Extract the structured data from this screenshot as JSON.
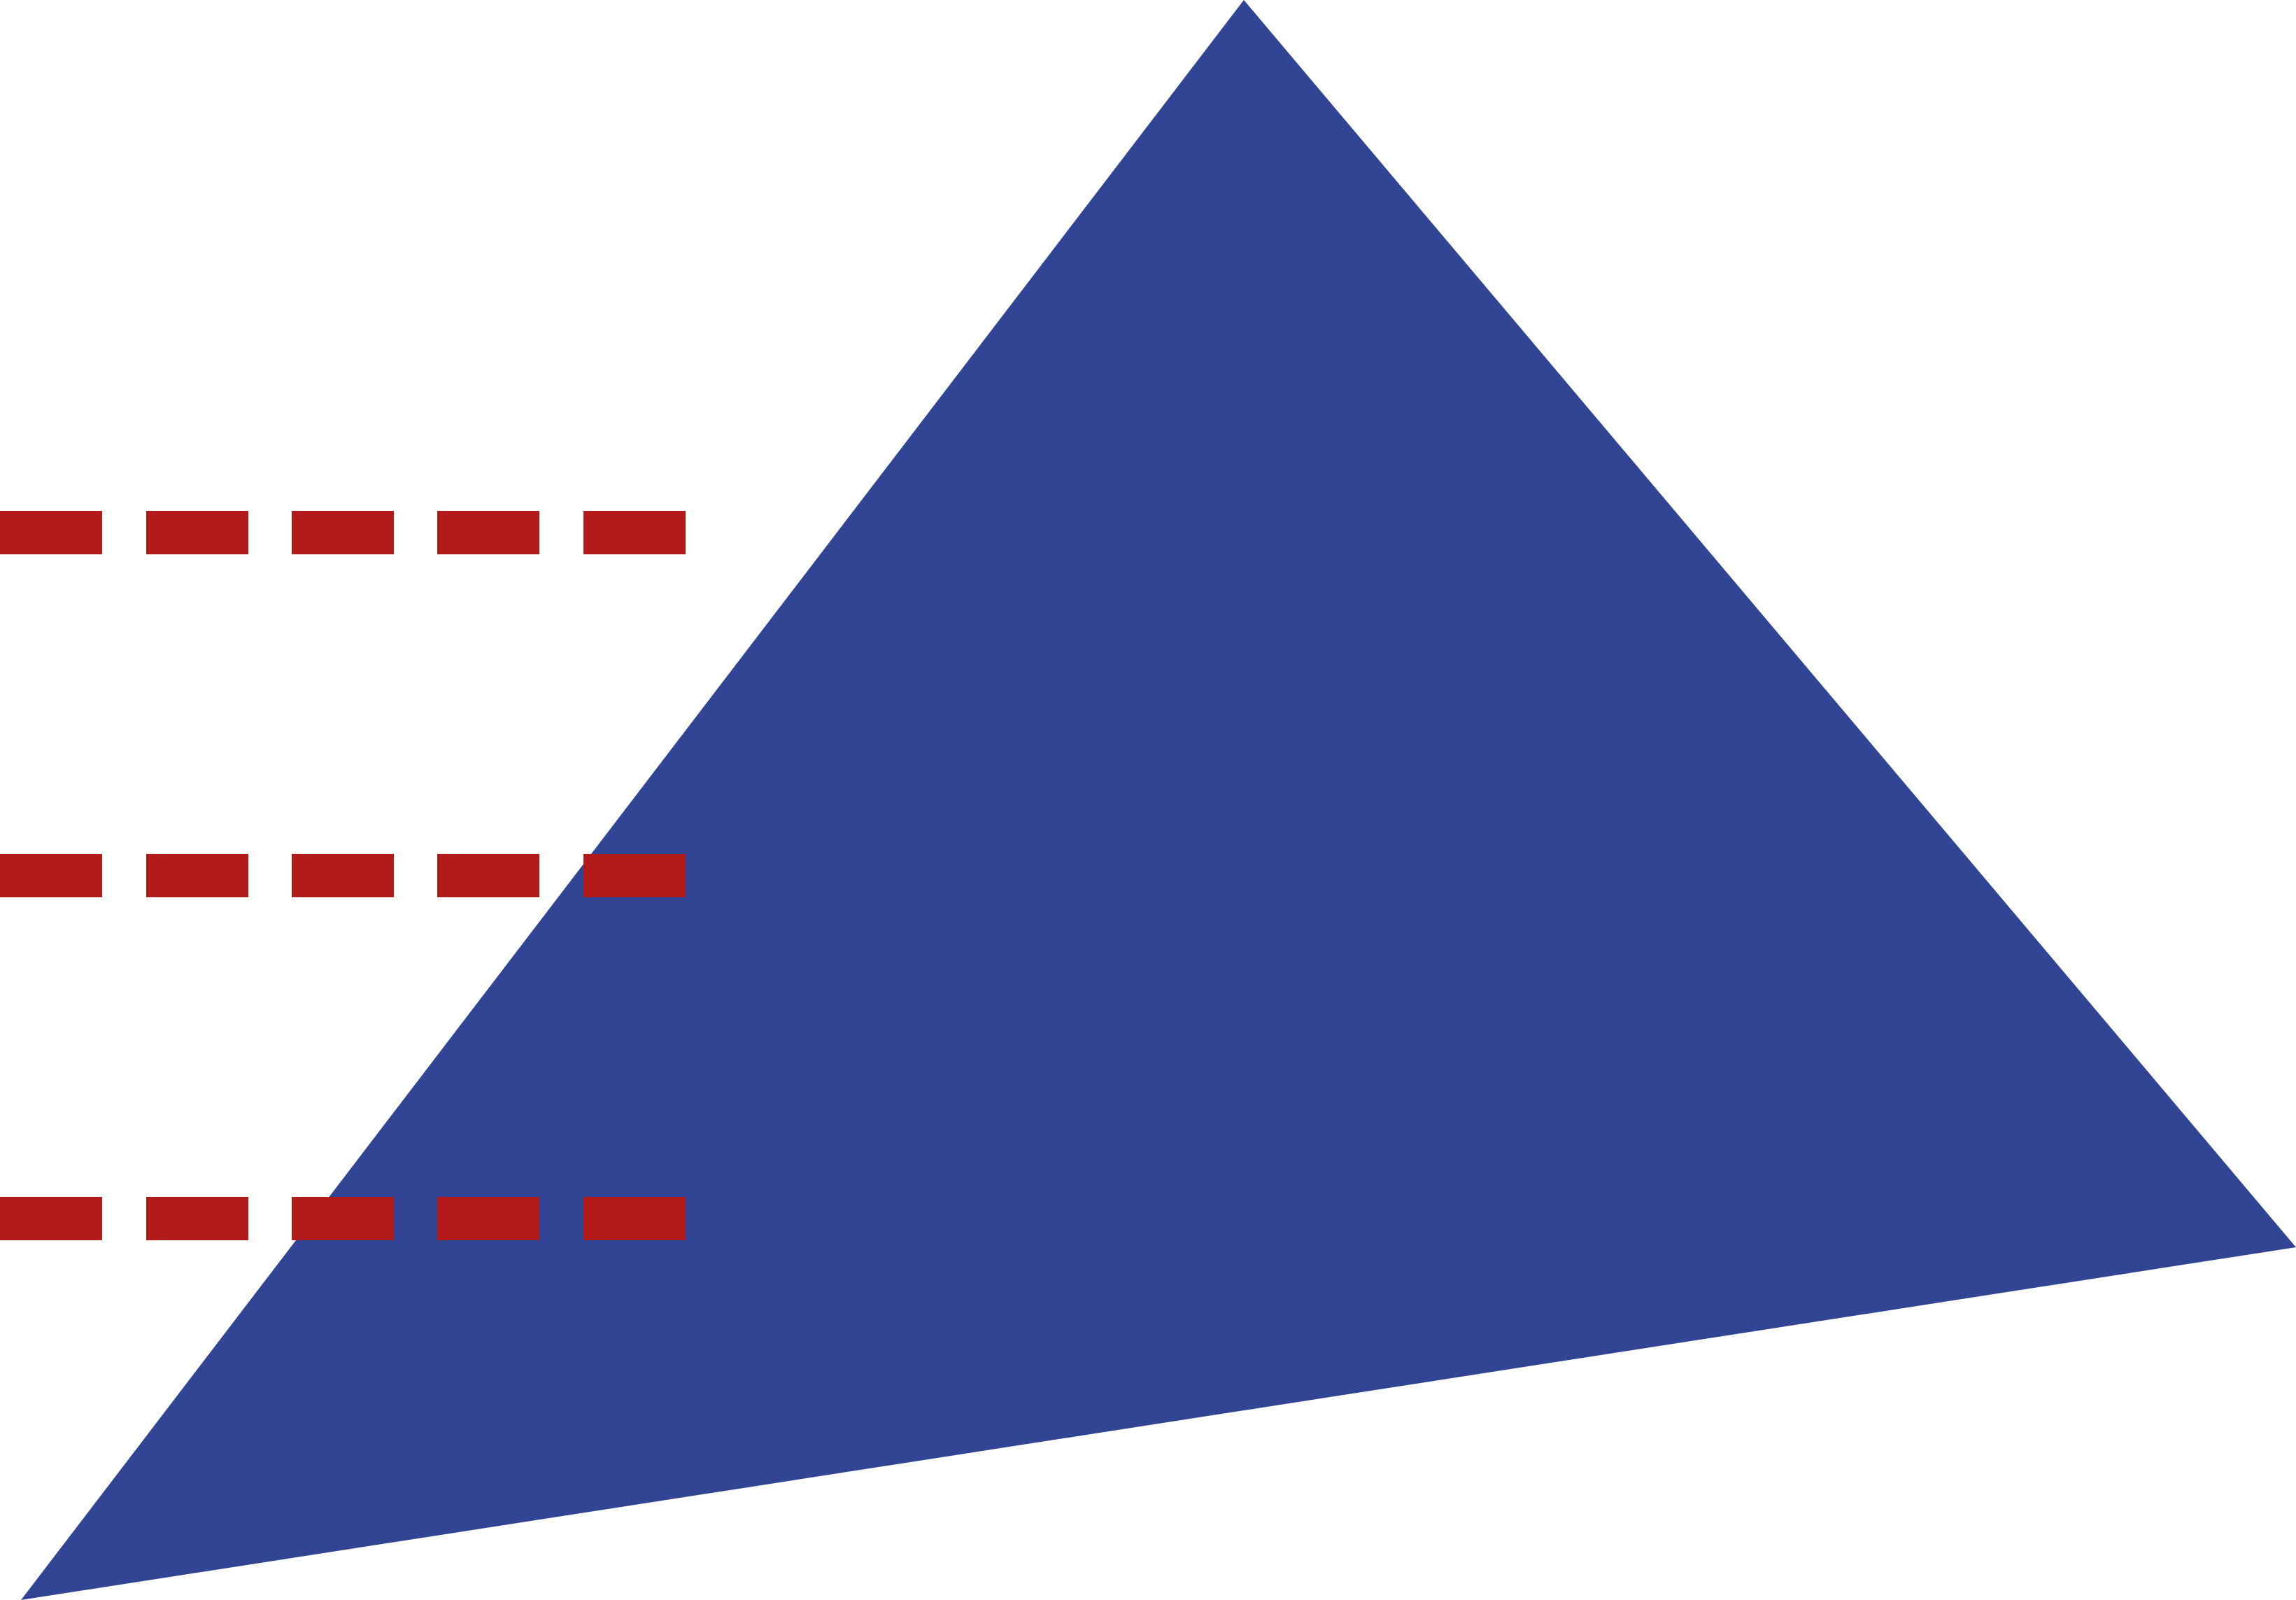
{
  "colors": {
    "background": "#ffffff",
    "triangle_fill": "#314594",
    "dash_color": "#b31b1b"
  },
  "shapes": {
    "triangle": {
      "name": "blue-triangle"
    },
    "dashed_lines": [
      {
        "name": "dashed-line-top"
      },
      {
        "name": "dashed-line-middle"
      },
      {
        "name": "dashed-line-bottom"
      }
    ]
  }
}
